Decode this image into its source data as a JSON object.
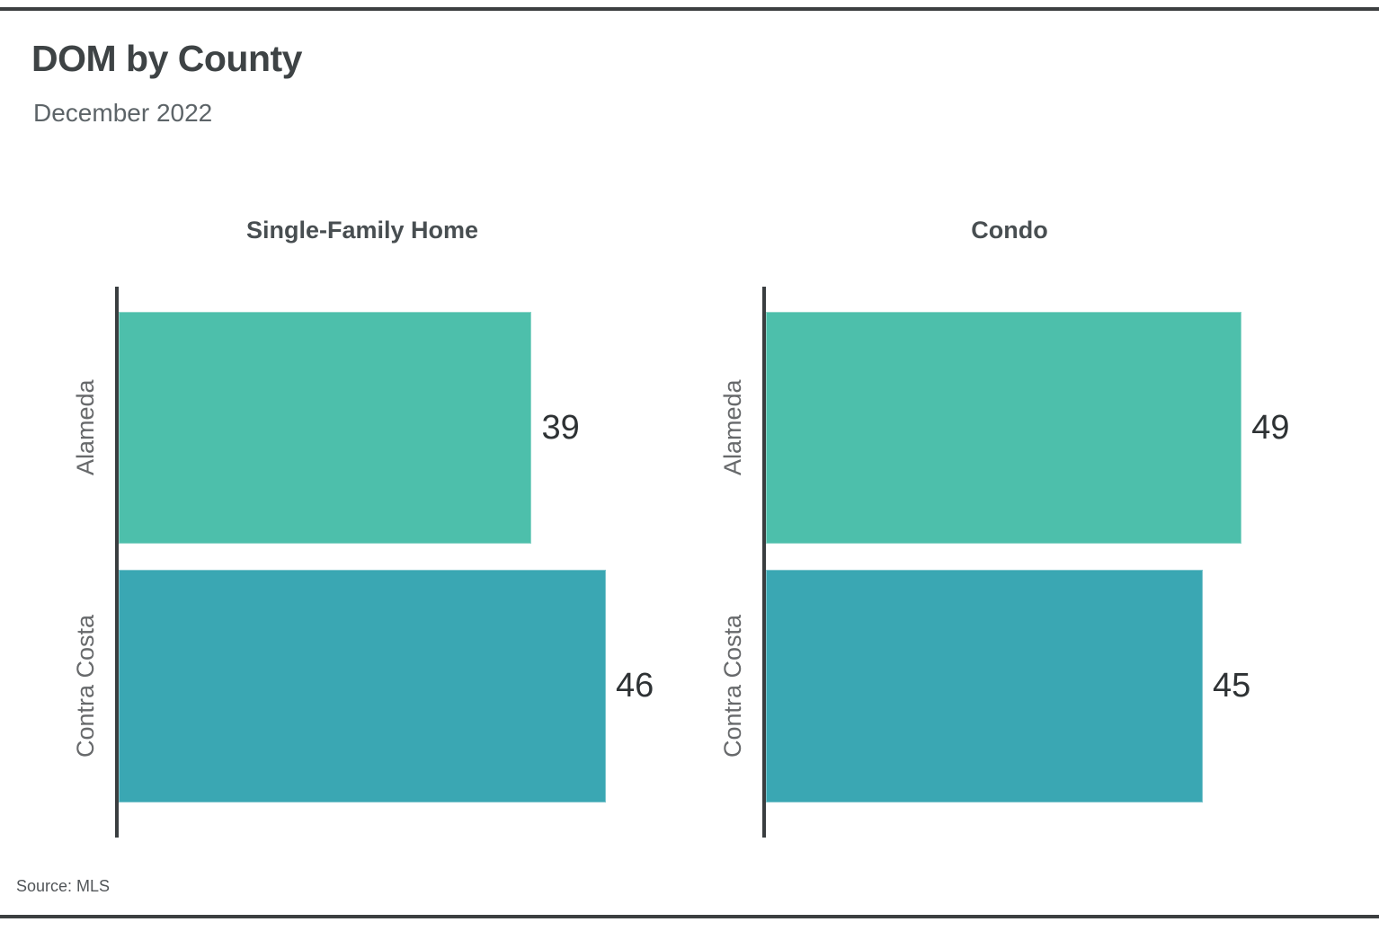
{
  "page": {
    "title": "DOM by County",
    "subtitle": "December 2022",
    "source": "Source: MLS"
  },
  "colors": {
    "alameda_bar": "#4dbfab",
    "contra_costa_bar": "#3aa7b3",
    "axis_line": "#3a3e40",
    "border_rule": "#3c3f40",
    "title_text": "#3e4345",
    "subtitle_text": "#5d6468"
  },
  "chart_data": [
    {
      "type": "bar",
      "orientation": "horizontal",
      "title": "Single-Family Home",
      "categories": [
        "Alameda",
        "Contra Costa"
      ],
      "values": [
        39,
        46
      ],
      "value_labels": [
        "39",
        "46"
      ],
      "xlim": [
        0,
        55
      ],
      "grid": false,
      "legend": "none",
      "bar_colors": [
        "#4dbfab",
        "#3aa7b3"
      ]
    },
    {
      "type": "bar",
      "orientation": "horizontal",
      "title": "Condo",
      "categories": [
        "Alameda",
        "Contra Costa"
      ],
      "values": [
        49,
        45
      ],
      "value_labels": [
        "49",
        "45"
      ],
      "xlim": [
        0,
        60
      ],
      "grid": false,
      "legend": "none",
      "bar_colors": [
        "#4dbfab",
        "#3aa7b3"
      ]
    }
  ]
}
